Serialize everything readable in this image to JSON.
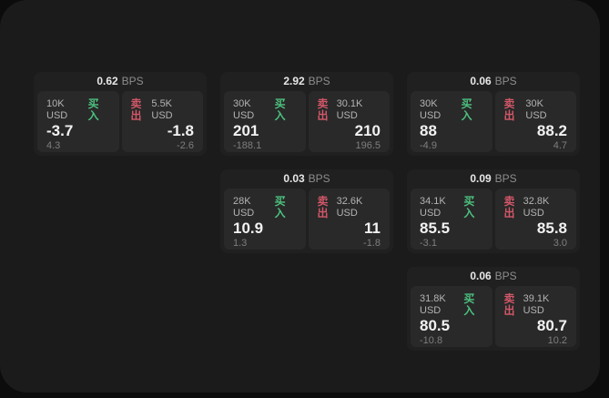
{
  "labels": {
    "unit": "BPS",
    "buy": "买入",
    "sell": "卖出"
  },
  "colors": {
    "buy_green": "#4cc17f",
    "sell_red": "#d25768",
    "panel_bg": "#1b1b1b",
    "card_bg": "#202020",
    "tile_bg": "#292929"
  },
  "cards": [
    {
      "bps": "0.62",
      "buy": {
        "notional": "10K USD",
        "price": "-3.7",
        "delta": "4.3"
      },
      "sell": {
        "notional": "5.5K USD",
        "price": "-1.8",
        "delta": "-2.6"
      }
    },
    {
      "bps": "2.92",
      "buy": {
        "notional": "30K USD",
        "price": "201",
        "delta": "-188.1"
      },
      "sell": {
        "notional": "30.1K USD",
        "price": "210",
        "delta": "196.5"
      }
    },
    {
      "bps": "0.06",
      "buy": {
        "notional": "30K USD",
        "price": "88",
        "delta": "-4.9"
      },
      "sell": {
        "notional": "30K USD",
        "price": "88.2",
        "delta": "4.7"
      }
    },
    {
      "bps": "0.03",
      "buy": {
        "notional": "28K USD",
        "price": "10.9",
        "delta": "1.3"
      },
      "sell": {
        "notional": "32.6K USD",
        "price": "11",
        "delta": "-1.8"
      }
    },
    {
      "bps": "0.09",
      "buy": {
        "notional": "34.1K USD",
        "price": "85.5",
        "delta": "-3.1"
      },
      "sell": {
        "notional": "32.8K USD",
        "price": "85.8",
        "delta": "3.0"
      }
    },
    {
      "bps": "0.06",
      "buy": {
        "notional": "31.8K USD",
        "price": "80.5",
        "delta": "-10.8"
      },
      "sell": {
        "notional": "39.1K USD",
        "price": "80.7",
        "delta": "10.2"
      }
    }
  ]
}
